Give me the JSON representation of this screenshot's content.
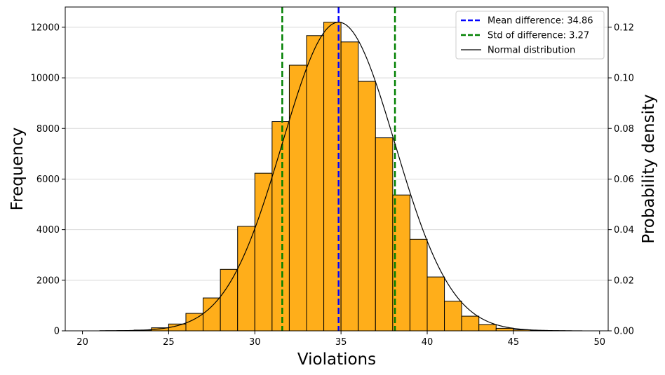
{
  "chart_data": {
    "type": "bar",
    "title": "",
    "xlabel": "Violations",
    "ylabel": "Frequency",
    "y2label": "Probability density",
    "xlim": [
      19.0,
      50.5
    ],
    "ylim": [
      0,
      12800
    ],
    "y2lim": [
      0,
      0.128
    ],
    "xticks": [
      20,
      25,
      30,
      35,
      40,
      45,
      50
    ],
    "yticks": [
      0,
      2000,
      4000,
      6000,
      8000,
      10000,
      12000
    ],
    "y2ticks": [
      0.0,
      0.02,
      0.04,
      0.06,
      0.08,
      0.1,
      0.12
    ],
    "y2tick_labels": [
      "0.00",
      "0.02",
      "0.04",
      "0.06",
      "0.08",
      "0.10",
      "0.12"
    ],
    "grid": "horizontal",
    "legend_position": "top-right",
    "bin_width": 1.0,
    "bins": [
      {
        "x": 21.5,
        "value": 5
      },
      {
        "x": 22.5,
        "value": 10
      },
      {
        "x": 23.5,
        "value": 30
      },
      {
        "x": 24.5,
        "value": 120
      },
      {
        "x": 25.5,
        "value": 270
      },
      {
        "x": 26.5,
        "value": 690
      },
      {
        "x": 27.5,
        "value": 1300
      },
      {
        "x": 28.5,
        "value": 2430
      },
      {
        "x": 29.5,
        "value": 4130
      },
      {
        "x": 30.5,
        "value": 6230
      },
      {
        "x": 31.5,
        "value": 8270
      },
      {
        "x": 32.5,
        "value": 10500
      },
      {
        "x": 33.5,
        "value": 11670
      },
      {
        "x": 34.5,
        "value": 12200
      },
      {
        "x": 35.5,
        "value": 11420
      },
      {
        "x": 36.5,
        "value": 9860
      },
      {
        "x": 37.5,
        "value": 7630
      },
      {
        "x": 38.5,
        "value": 5370
      },
      {
        "x": 39.5,
        "value": 3620
      },
      {
        "x": 40.5,
        "value": 2130
      },
      {
        "x": 41.5,
        "value": 1170
      },
      {
        "x": 42.5,
        "value": 580
      },
      {
        "x": 43.5,
        "value": 250
      },
      {
        "x": 44.5,
        "value": 100
      },
      {
        "x": 45.5,
        "value": 40
      },
      {
        "x": 46.5,
        "value": 15
      },
      {
        "x": 47.5,
        "value": 5
      }
    ],
    "normal_curve": {
      "mean": 34.86,
      "std": 3.27,
      "x_range": [
        21,
        49
      ]
    },
    "reference_lines": {
      "mean": 34.86,
      "std_lower": 31.59,
      "std_upper": 38.13
    },
    "legend": [
      {
        "label": "Mean difference: 34.86",
        "color": "#0000ff",
        "style": "dashed"
      },
      {
        "label": "Std of difference: 3.27",
        "color": "#008000",
        "style": "dashed"
      },
      {
        "label": "Normal distribution",
        "color": "#000000",
        "style": "solid"
      }
    ],
    "colors": {
      "bar_fill": "#ffae1a",
      "bar_edge": "#000000",
      "mean_line": "#0000ff",
      "std_line": "#008000",
      "curve": "#000000",
      "grid": "#d9d9d9"
    }
  }
}
